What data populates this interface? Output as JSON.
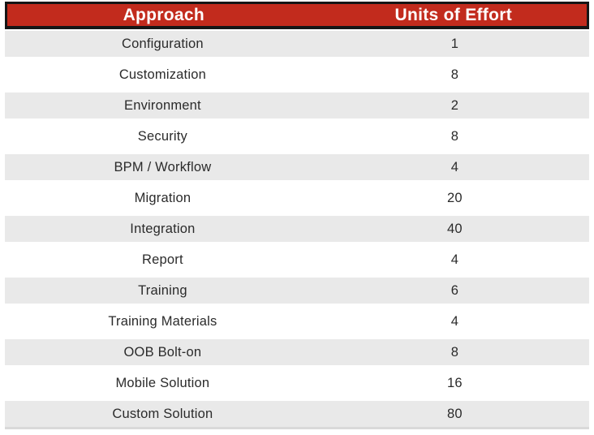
{
  "table": {
    "columns": [
      {
        "label": "Approach"
      },
      {
        "label": "Units of Effort"
      }
    ],
    "rows": [
      {
        "approach": "Configuration",
        "effort": "1"
      },
      {
        "approach": "Customization",
        "effort": "8"
      },
      {
        "approach": "Environment",
        "effort": "2"
      },
      {
        "approach": "Security",
        "effort": "8"
      },
      {
        "approach": "BPM / Workflow",
        "effort": "4"
      },
      {
        "approach": "Migration",
        "effort": "20"
      },
      {
        "approach": "Integration",
        "effort": "40"
      },
      {
        "approach": "Report",
        "effort": "4"
      },
      {
        "approach": "Training",
        "effort": "6"
      },
      {
        "approach": "Training Materials",
        "effort": "4"
      },
      {
        "approach": "OOB Bolt-on",
        "effort": "8"
      },
      {
        "approach": "Mobile Solution",
        "effort": "16"
      },
      {
        "approach": "Custom Solution",
        "effort": "80"
      }
    ]
  },
  "chart_data": {
    "type": "table",
    "title": "",
    "columns": [
      "Approach",
      "Units of Effort"
    ],
    "categories": [
      "Configuration",
      "Customization",
      "Environment",
      "Security",
      "BPM / Workflow",
      "Migration",
      "Integration",
      "Report",
      "Training",
      "Training Materials",
      "OOB Bolt-on",
      "Mobile Solution",
      "Custom Solution"
    ],
    "values": [
      1,
      8,
      2,
      8,
      4,
      20,
      40,
      4,
      6,
      4,
      8,
      16,
      80
    ],
    "layout": {
      "header_position": "top",
      "row_striping": "odd-rows-gray"
    }
  },
  "colors": {
    "header_bg": "#c22b1d",
    "header_text": "#ffffff",
    "border": "#161616",
    "row_alt_bg": "#e9e9e9",
    "body_text": "#2b2b2b",
    "bottom_line": "#d9d9d9"
  }
}
